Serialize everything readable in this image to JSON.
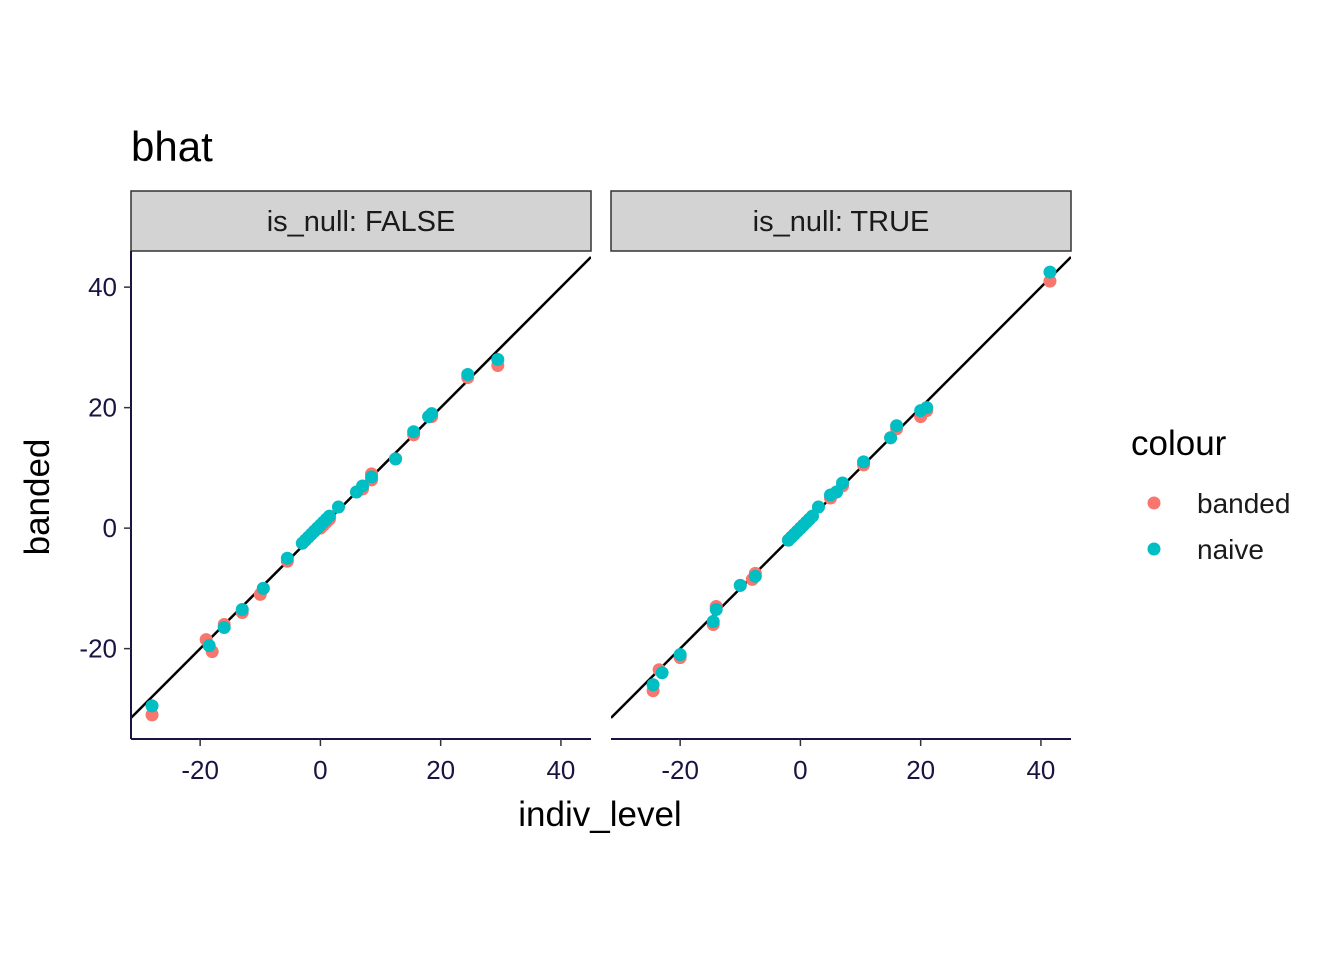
{
  "chart_data": {
    "type": "scatter",
    "title": "bhat",
    "xlabel": "indiv_level",
    "ylabel": "banded",
    "xlim": [
      -31.5,
      45
    ],
    "ylim": [
      -35,
      46
    ],
    "x_ticks": [
      -20,
      0,
      20,
      40
    ],
    "y_ticks": [
      -20,
      0,
      20,
      40
    ],
    "grid": false,
    "reference_line": "y = x",
    "legend": {
      "title": "colour",
      "position": "right",
      "entries": [
        {
          "label": "banded",
          "color": "#F8766D"
        },
        {
          "label": "naive",
          "color": "#00BFC4"
        }
      ]
    },
    "panels": [
      {
        "strip": "is_null: FALSE",
        "series": [
          {
            "name": "banded",
            "color": "#F8766D",
            "x": [
              -28,
              -19,
              -18,
              -16,
              -13,
              -10,
              -9.5,
              -5.5,
              -3,
              -2.5,
              -2,
              -1.5,
              -1,
              -0.5,
              0,
              0.5,
              1,
              1.5,
              3,
              6,
              7,
              8.5,
              8.5,
              12.5,
              15.5,
              18,
              18.5,
              24.5,
              29.5
            ],
            "y": [
              -31,
              -18.5,
              -20.5,
              -16,
              -14,
              -11,
              -10,
              -5.5,
              -2.5,
              -2,
              -1.5,
              -1,
              -0.5,
              0,
              0,
              0.5,
              1,
              1.5,
              3.5,
              6,
              6.5,
              9,
              8,
              11.5,
              15.5,
              18.5,
              18.5,
              25,
              27
            ]
          },
          {
            "name": "naive",
            "color": "#00BFC4",
            "x": [
              -28,
              -18.5,
              -16,
              -13,
              -9.5,
              -5.5,
              -3,
              -2.5,
              -2,
              -1.5,
              -1,
              -0.5,
              0,
              0.5,
              1,
              1.5,
              3,
              6,
              7,
              8.5,
              12.5,
              15.5,
              18,
              18.5,
              24.5,
              29.5
            ],
            "y": [
              -29.5,
              -19.5,
              -16.5,
              -13.5,
              -10,
              -5,
              -2.5,
              -2,
              -1.5,
              -1,
              -0.5,
              0,
              0.5,
              1,
              1.5,
              2,
              3.5,
              6,
              7,
              8.5,
              11.5,
              16,
              18.5,
              19,
              25.5,
              28
            ]
          }
        ]
      },
      {
        "strip": "is_null: TRUE",
        "series": [
          {
            "name": "banded",
            "color": "#F8766D",
            "x": [
              -24.5,
              -23.5,
              -20,
              -14.5,
              -14,
              -10,
              -8,
              -7.5,
              -2,
              -1.5,
              -1,
              -0.5,
              0,
              0.5,
              1,
              1.5,
              2,
              3,
              5,
              6,
              7,
              10.5,
              15,
              16,
              20,
              21,
              41.5
            ],
            "y": [
              -27,
              -23.5,
              -21.5,
              -16,
              -13,
              -9.5,
              -8.5,
              -7.5,
              -2,
              -1.5,
              -1,
              -0.5,
              0,
              0.5,
              1,
              1.5,
              2,
              3.5,
              5,
              6,
              7,
              10.5,
              15,
              16.5,
              18.5,
              19.5,
              41
            ]
          },
          {
            "name": "naive",
            "color": "#00BFC4",
            "x": [
              -24.5,
              -23,
              -20,
              -14.5,
              -14,
              -10,
              -7.5,
              -2,
              -1.5,
              -1,
              -0.5,
              0,
              0.5,
              1,
              1.5,
              2,
              3,
              5,
              6,
              7,
              10.5,
              15,
              16,
              20,
              21,
              41.5
            ],
            "y": [
              -26,
              -24,
              -21,
              -15.5,
              -13.5,
              -9.5,
              -8,
              -2,
              -1.5,
              -1,
              -0.5,
              0,
              0.5,
              1,
              1.5,
              2,
              3.5,
              5.5,
              6,
              7.5,
              11,
              15,
              17,
              19.5,
              20,
              42.5
            ]
          }
        ]
      }
    ]
  }
}
